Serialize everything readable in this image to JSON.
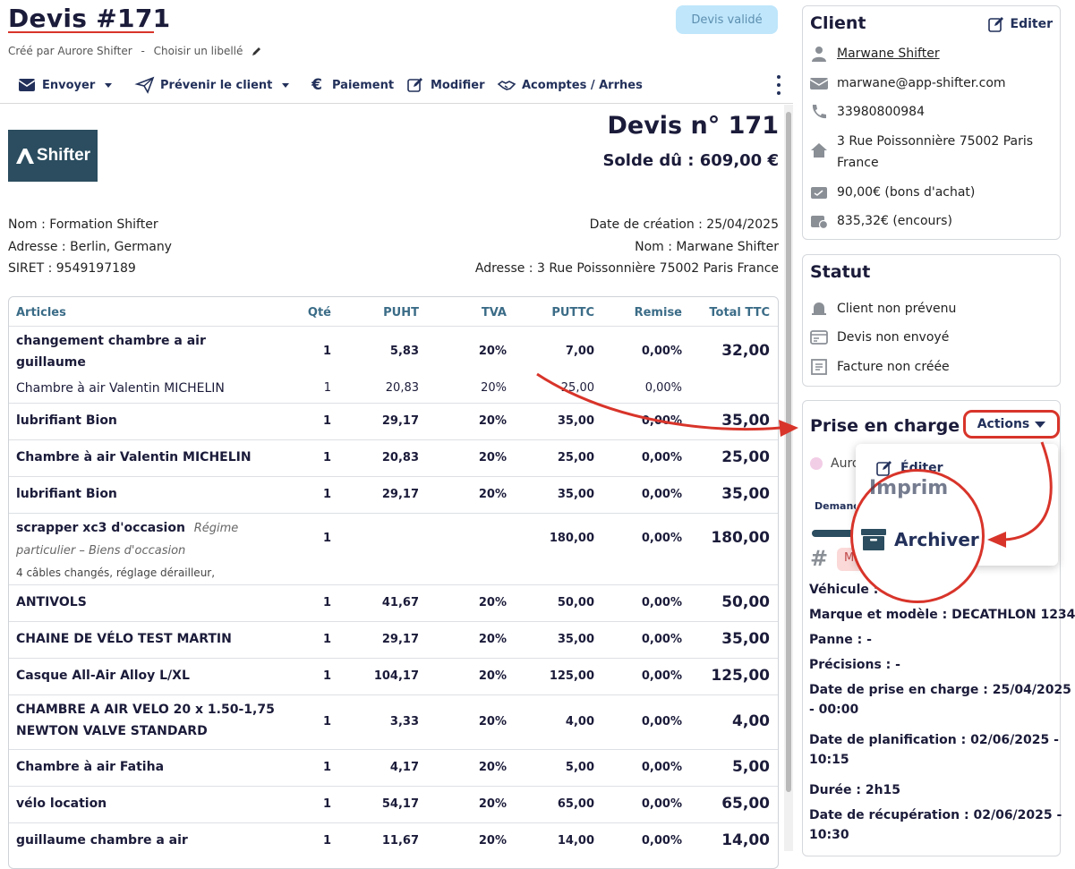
{
  "header": {
    "title": "Devis #171",
    "created_by": "Créé par Aurore Shifter",
    "separator": "-",
    "label_link": "Choisir un libellé",
    "status": "Devis validé"
  },
  "toolbar": {
    "send": "Envoyer",
    "notify": "Prévenir le client",
    "payment": "Paiement",
    "edit": "Modifier",
    "deposits": "Acomptes / Arrhes"
  },
  "document": {
    "logo_text": "Shifter",
    "number": "Devis n° 171",
    "balance": "Solde dû : 609,00 €",
    "company_name": "Nom : Formation Shifter",
    "company_address": "Adresse : Berlin, Germany",
    "company_siret": "SIRET : 9549197189",
    "creation_date": "Date de création : 25/04/2025",
    "client_name": "Nom : Marwane Shifter",
    "client_address": "Adresse :  3 Rue Poissonnière 75002 Paris France"
  },
  "table": {
    "headers": [
      "Articles",
      "Qté",
      "PUHT",
      "TVA",
      "PUTTC",
      "Remise",
      "Total TTC"
    ],
    "rows": [
      {
        "name1": "changement chambre a air",
        "name2": "guillaume",
        "qty": "1",
        "puht": "5,83",
        "tva": "20%",
        "puttc": "7,00",
        "remise": "0,00%",
        "total": "32,00"
      },
      {
        "name1": "Chambre à air Valentin MICHELIN",
        "qty": "1",
        "puht": "20,83",
        "tva": "20%",
        "puttc": "25,00",
        "remise": "0,00%"
      },
      {
        "name1": "lubrifiant Bion",
        "qty": "1",
        "puht": "29,17",
        "tva": "20%",
        "puttc": "35,00",
        "remise": "0,00%",
        "total": "35,00"
      },
      {
        "name1": "Chambre à air Valentin MICHELIN",
        "qty": "1",
        "puht": "20,83",
        "tva": "20%",
        "puttc": "25,00",
        "remise": "0,00%",
        "total": "25,00"
      },
      {
        "name1": "lubrifiant Bion",
        "qty": "1",
        "puht": "29,17",
        "tva": "20%",
        "puttc": "35,00",
        "remise": "0,00%",
        "total": "35,00"
      },
      {
        "name1": "scrapper xc3 d'occasion",
        "regime1": "Régime",
        "regime2": "particulier – Biens d'occasion",
        "note": "4 câbles changés, réglage dérailleur,",
        "qty": "1",
        "puttc": "180,00",
        "remise": "0,00%",
        "total": "180,00"
      },
      {
        "name1": "ANTIVOLS",
        "qty": "1",
        "puht": "41,67",
        "tva": "20%",
        "puttc": "50,00",
        "remise": "0,00%",
        "total": "50,00"
      },
      {
        "name1": "CHAINE DE VÉLO TEST MARTIN",
        "qty": "1",
        "puht": "29,17",
        "tva": "20%",
        "puttc": "35,00",
        "remise": "0,00%",
        "total": "35,00"
      },
      {
        "name1": "Casque All-Air Alloy L/XL",
        "qty": "1",
        "puht": "104,17",
        "tva": "20%",
        "puttc": "125,00",
        "remise": "0,00%",
        "total": "125,00"
      },
      {
        "name1": "CHAMBRE A AIR VELO 20 x 1.50-1,75",
        "name2": "NEWTON VALVE STANDARD",
        "qty": "1",
        "puht": "3,33",
        "tva": "20%",
        "puttc": "4,00",
        "remise": "0,00%",
        "total": "4,00"
      },
      {
        "name1": "Chambre à air Fatiha",
        "qty": "1",
        "puht": "4,17",
        "tva": "20%",
        "puttc": "5,00",
        "remise": "0,00%",
        "total": "5,00"
      },
      {
        "name1": "vélo location",
        "qty": "1",
        "puht": "54,17",
        "tva": "20%",
        "puttc": "65,00",
        "remise": "0,00%",
        "total": "65,00"
      },
      {
        "name1": "guillaume chambre a air",
        "qty": "1",
        "puht": "11,67",
        "tva": "20%",
        "puttc": "14,00",
        "remise": "0,00%",
        "total": "14,00"
      }
    ]
  },
  "client_card": {
    "title": "Client",
    "edit": "Editer",
    "name": "Marwane Shifter",
    "email": "marwane@app-shifter.com",
    "phone": "33980800984",
    "address_line1": "3 Rue Poissonnière 75002 Paris",
    "address_line2": "France",
    "vouchers": "90,00€ (bons d'achat)",
    "outstanding": "835,32€ (encours)"
  },
  "status_card": {
    "title": "Statut",
    "client": "Client non prévenu",
    "quote": "Devis non envoyé",
    "invoice": "Facture non créée"
  },
  "pec_card": {
    "title": "Prise en charge",
    "actions": "Actions",
    "assignee_partial": "Auro",
    "demand_partial": "Demand",
    "tag_partial": "M",
    "vehicle": "Véhicule :",
    "brand": "Marque et modèle : DECATHLON 1234",
    "issue": "Panne : -",
    "details": "Précisions : -",
    "pec_date1": "Date de prise en charge : 25/04/2025",
    "pec_date2": "- 00:00",
    "plan_date1": "Date de planification : 02/06/2025 -",
    "plan_date2": "10:15",
    "duration": "Durée : 2h15",
    "pickup1": "Date de récupération : 02/06/2025 -",
    "pickup2": "10:30"
  },
  "menu": {
    "edit": "Éditer",
    "print_partial": "Imprim",
    "archive": "Archiver"
  },
  "colors": {
    "accent": "#d8342a",
    "navy": "#22305a",
    "header_text": "#3b6c87",
    "logo_bg": "#2b4d5f",
    "status_bg": "#bfe6fb"
  }
}
